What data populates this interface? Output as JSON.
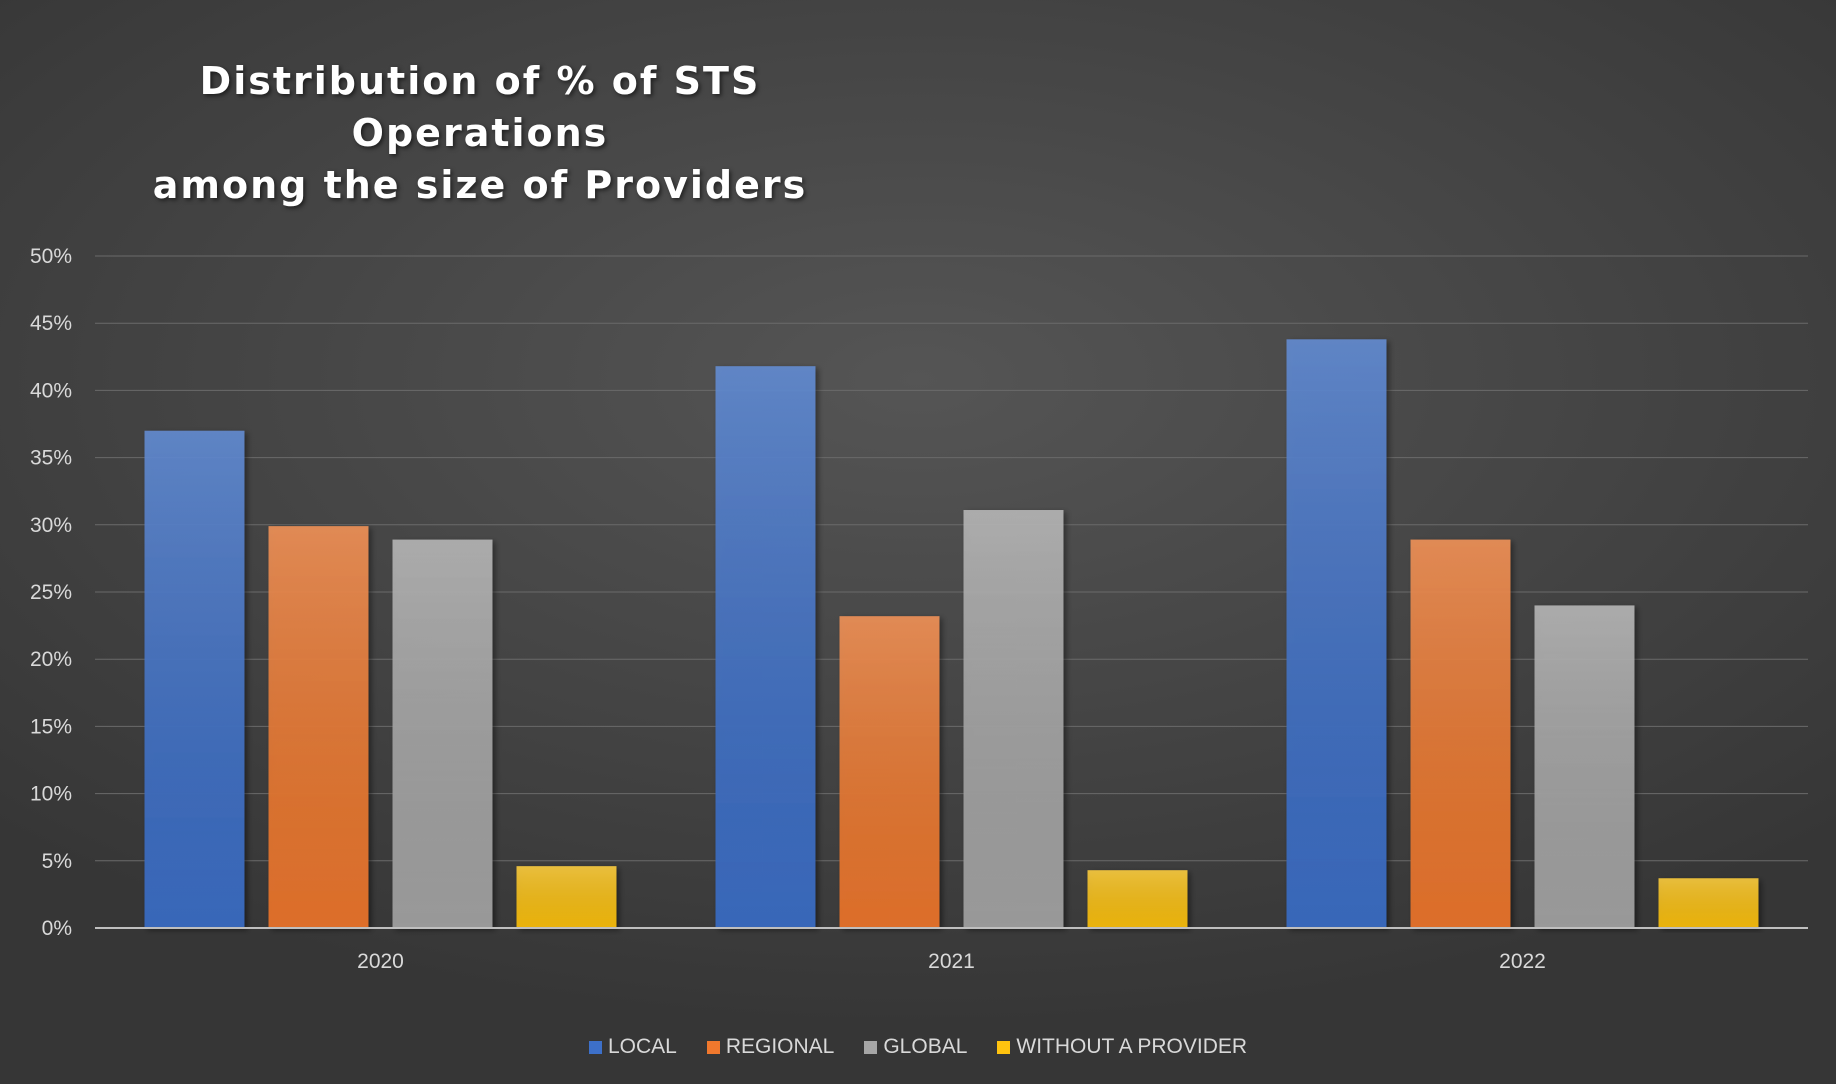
{
  "chart_data": {
    "type": "bar",
    "title": [
      "Distribution of % of STS Operations",
      "among the size of Providers"
    ],
    "categories": [
      "2020",
      "2021",
      "2022"
    ],
    "series": [
      {
        "name": "LOCAL",
        "values": [
          37,
          41.8,
          43.8
        ],
        "color": "#3d70c9"
      },
      {
        "name": "REGIONAL",
        "values": [
          29.9,
          23.2,
          28.9
        ],
        "color": "#f0782d"
      },
      {
        "name": "GLOBAL",
        "values": [
          28.9,
          31.1,
          24
        ],
        "color": "#a6a6a6"
      },
      {
        "name": "WITHOUT A PROVIDER",
        "values": [
          4.6,
          4.3,
          3.7
        ],
        "color": "#ffc30f"
      }
    ],
    "ylim": [
      0,
      50
    ],
    "yticks": [
      0,
      5,
      10,
      15,
      20,
      25,
      30,
      35,
      40,
      45,
      50
    ],
    "ytick_labels": [
      "0%",
      "5%",
      "10%",
      "15%",
      "20%",
      "25%",
      "30%",
      "35%",
      "40%",
      "45%",
      "50%"
    ],
    "xlabel": "",
    "ylabel": "",
    "grid": true,
    "legend_position": "bottom"
  }
}
